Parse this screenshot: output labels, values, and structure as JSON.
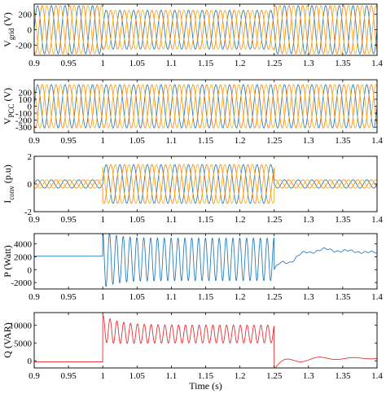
{
  "colors": {
    "phase_a": "#1f77b4",
    "phase_b": "#ff7f0e",
    "phase_c": "#edb120",
    "reactive": "#e8252a",
    "axis": "#000000",
    "frame": "#000000"
  },
  "chart_data": [
    {
      "type": "line",
      "ylabel_main": "V",
      "ylabel_sub": "grid",
      "ylabel_unit": " (V)",
      "xlim": [
        0.9,
        1.4
      ],
      "ylim": [
        -330,
        330
      ],
      "xticks": [
        "0.9",
        "0.95",
        "1",
        "1.05",
        "1.1",
        "1.15",
        "1.2",
        "1.25",
        "1.3",
        "1.35",
        "1.4"
      ],
      "yticks": [
        {
          "v": 200,
          "label": "200"
        },
        {
          "v": 0,
          "label": "0"
        },
        {
          "v": -200,
          "label": "-200"
        }
      ],
      "series": [
        {
          "color_key": "phase_a",
          "phase_deg": 0
        },
        {
          "color_key": "phase_b",
          "phase_deg": -120
        },
        {
          "color_key": "phase_c",
          "phase_deg": 120
        }
      ],
      "signal": {
        "kind": "three_phase",
        "freq_hz": 50,
        "segments": [
          {
            "from": 0.9,
            "to": 1.0,
            "amp": 310
          },
          {
            "from": 1.0,
            "to": 1.25,
            "amp": 250
          },
          {
            "from": 1.25,
            "to": 1.4,
            "amp": 310
          }
        ]
      }
    },
    {
      "type": "line",
      "ylabel_main": "V",
      "ylabel_sub": "PCC",
      "ylabel_unit": " (V)",
      "xlim": [
        0.9,
        1.4
      ],
      "ylim": [
        -380,
        380
      ],
      "xticks": [
        "0.9",
        "0.95",
        "1",
        "1.05",
        "1.1",
        "1.15",
        "1.2",
        "1.25",
        "1.3",
        "1.35",
        "1.4"
      ],
      "yticks": [
        {
          "v": 200,
          "label": "200"
        },
        {
          "v": 100,
          "label": "100"
        },
        {
          "v": 0,
          "label": "0"
        },
        {
          "v": -100,
          "label": "-100"
        },
        {
          "v": -200,
          "label": "-200"
        },
        {
          "v": -300,
          "label": "-300"
        }
      ],
      "series": [
        {
          "color_key": "phase_a",
          "phase_deg": 0
        },
        {
          "color_key": "phase_b",
          "phase_deg": -120
        },
        {
          "color_key": "phase_c",
          "phase_deg": 120
        }
      ],
      "signal": {
        "kind": "three_phase",
        "freq_hz": 50,
        "segments": [
          {
            "from": 0.9,
            "to": 1.4,
            "amp": 310
          }
        ]
      }
    },
    {
      "type": "line",
      "ylabel_main": "I",
      "ylabel_sub": "conv",
      "ylabel_unit": " (p.u)",
      "xlim": [
        0.9,
        1.4
      ],
      "ylim": [
        -2,
        2
      ],
      "xticks": [
        "0.9",
        "0.95",
        "1",
        "1.05",
        "1.1",
        "1.15",
        "1.2",
        "1.25",
        "1.3",
        "1.35",
        "1.4"
      ],
      "yticks": [
        {
          "v": 2,
          "label": "2"
        },
        {
          "v": 0,
          "label": "0"
        },
        {
          "v": -2,
          "label": "-2"
        }
      ],
      "series": [
        {
          "color_key": "phase_a",
          "phase_deg": 0
        },
        {
          "color_key": "phase_b",
          "phase_deg": -120
        },
        {
          "color_key": "phase_c",
          "phase_deg": 120
        }
      ],
      "signal": {
        "kind": "three_phase",
        "freq_hz": 50,
        "segments": [
          {
            "from": 0.9,
            "to": 1.0,
            "amp": 0.3
          },
          {
            "from": 1.0,
            "to": 1.25,
            "amp": 1.4
          },
          {
            "from": 1.25,
            "to": 1.4,
            "amp": 0.3
          }
        ]
      }
    },
    {
      "type": "line",
      "ylabel_main": "P (Watt)",
      "ylabel_sub": "",
      "ylabel_unit": "",
      "xlim": [
        0.9,
        1.4
      ],
      "ylim": [
        -3000,
        5600
      ],
      "xticks": [
        "0.9",
        "0.95",
        "1",
        "1.05",
        "1.1",
        "1.15",
        "1.2",
        "1.25",
        "1.3",
        "1.35",
        "1.4"
      ],
      "yticks": [
        {
          "v": 4000,
          "label": "4000"
        },
        {
          "v": 2000,
          "label": "2000"
        },
        {
          "v": 0,
          "label": "0"
        },
        {
          "v": -2000,
          "label": "-2000"
        }
      ],
      "series": [
        {
          "color_key": "phase_a"
        }
      ],
      "signal": {
        "kind": "power",
        "freq_hz": 100,
        "base": 2100,
        "dist_mean": 1600,
        "dist_amp": 3300,
        "segments": [
          {
            "from": 0.9,
            "to": 1.0
          },
          {
            "from": 1.0,
            "to": 1.25
          },
          {
            "from": 1.25,
            "to": 1.4
          }
        ],
        "recovery": {
          "start": 0.3,
          "peak": 3900,
          "final": 2200,
          "osc_amp": 550,
          "osc_freq": 30,
          "tau": 0.05
        }
      }
    },
    {
      "type": "line",
      "ylabel_main": "Q (VAR)",
      "ylabel_sub": "",
      "ylabel_unit": "",
      "xlim": [
        0.9,
        1.4
      ],
      "ylim": [
        -2000,
        13500
      ],
      "xticks": [
        "0.9",
        "0.95",
        "1",
        "1.05",
        "1.1",
        "1.15",
        "1.2",
        "1.25",
        "1.3",
        "1.35",
        "1.4"
      ],
      "yticks": [
        {
          "v": 10000,
          "label": "10000"
        },
        {
          "v": 5000,
          "label": "5000"
        },
        {
          "v": 0,
          "label": "0"
        }
      ],
      "xlabel": "Time (s)",
      "series": [
        {
          "color_key": "reactive"
        }
      ],
      "signal": {
        "kind": "reactive",
        "freq_hz": 100,
        "base": -300,
        "dist_mean": 7500,
        "dist_amp": 2500,
        "recovery": {
          "dip": -1900,
          "final": 700,
          "osc_amp": 1100,
          "osc_freq": 20,
          "tau": 0.07
        }
      }
    }
  ]
}
